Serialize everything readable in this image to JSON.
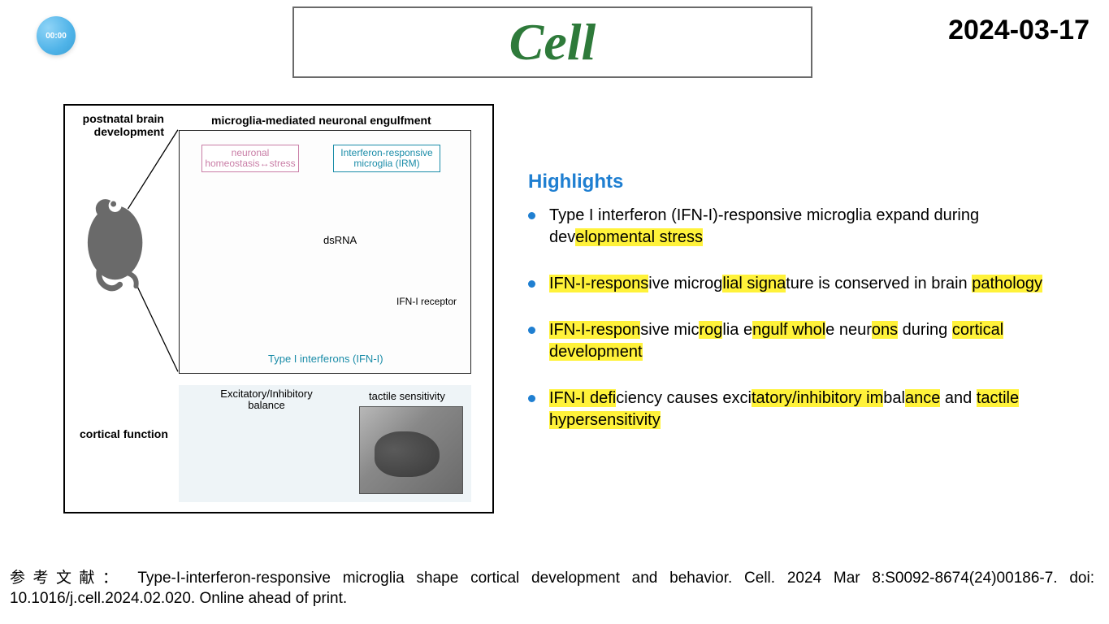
{
  "timer": "00:00",
  "title": "Cell",
  "date": "2024-03-17",
  "figure": {
    "top_left_label": "postnatal brain development",
    "section_title": "microglia-mediated neuronal engulfment",
    "neuronal_box": "neuronal homeostasis↔stress",
    "irm_box": "Interferon-responsive microglia (IRM)",
    "dsrna": "dsRNA",
    "ifn_receptor": "IFN-I receptor",
    "ifn_bottom": "Type I interferons (IFN-I)",
    "ei_balance": "Excitatory/Inhibitory balance",
    "tactile": "tactile sensitivity",
    "cortical_fn": "cortical function",
    "colors": {
      "neuron_pink": "#c97da6",
      "neuron_pink_fill": "#d9a6c2",
      "neuron_grey": "#cfcfcf",
      "microglia_teal": "#1a8ca8",
      "microglia_teal_fill": "#1f9bb5",
      "microglia_nucleus": "#1a2a66",
      "mouse_grey": "#6a6a6a",
      "lightning": "#f5a623",
      "dot_teal": "#1a8ca8",
      "lower_bg": "#eef4f7"
    }
  },
  "highlights": {
    "title": "Highlights",
    "items": [
      {
        "segments": [
          {
            "t": "Type I interferon (IFN-I)-responsive microglia expand during dev",
            "h": false
          },
          {
            "t": "elopmental stress",
            "h": true
          }
        ]
      },
      {
        "segments": [
          {
            "t": "IFN-I-respons",
            "h": true
          },
          {
            "t": "ive microg",
            "h": false
          },
          {
            "t": "lial signa",
            "h": true
          },
          {
            "t": "ture is conserved in brain ",
            "h": false
          },
          {
            "t": "pathology",
            "h": true
          }
        ]
      },
      {
        "segments": [
          {
            "t": "IFN-I-respon",
            "h": true
          },
          {
            "t": "sive mic",
            "h": false
          },
          {
            "t": "rog",
            "h": true
          },
          {
            "t": "lia e",
            "h": false
          },
          {
            "t": "ngulf whol",
            "h": true
          },
          {
            "t": "e neur",
            "h": false
          },
          {
            "t": "ons",
            "h": true
          },
          {
            "t": " during ",
            "h": false
          },
          {
            "t": "cortical development",
            "h": true
          }
        ]
      },
      {
        "segments": [
          {
            "t": "IFN-I defi",
            "h": true
          },
          {
            "t": "ciency causes exci",
            "h": false
          },
          {
            "t": "tatory/inhibitory im",
            "h": true
          },
          {
            "t": "bal",
            "h": false
          },
          {
            "t": "ance",
            "h": true
          },
          {
            "t": " and ",
            "h": false
          },
          {
            "t": "tactile hypersensitivity",
            "h": true
          }
        ]
      }
    ]
  },
  "reference_prefix": "参考文献：",
  "reference_body": "Type-I-interferon-responsive microglia shape cortical development and behavior. Cell. 2024 Mar 8:S0092-8674(24)00186-7. doi: 10.1016/j.cell.2024.02.020. Online ahead of print."
}
